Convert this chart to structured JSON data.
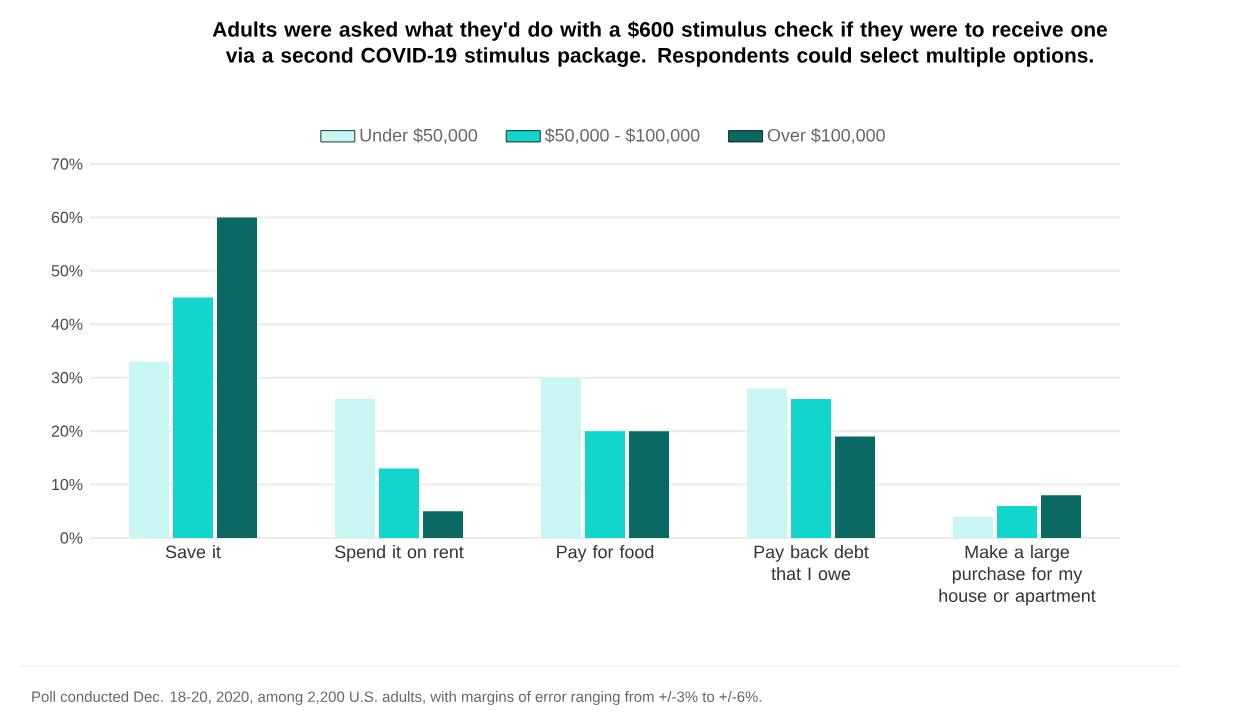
{
  "chart_data": {
    "type": "bar",
    "title": "Adults were asked what they'd do with a $600 stimulus check if they were to receive one via a second COVID-19 stimulus package. Respondents could select multiple options.",
    "categories": [
      "Save it",
      "Spend it on rent",
      "Pay for food",
      "Pay back debt that I owe",
      "Make a large purchase for my house or apartment"
    ],
    "series": [
      {
        "name": "Under $50,000",
        "color": "#c8f6f3",
        "values": [
          33,
          26,
          30,
          28,
          4
        ]
      },
      {
        "name": "$50,000 - $100,000",
        "color": "#12d6cb",
        "values": [
          45,
          13,
          20,
          26,
          6
        ]
      },
      {
        "name": "Over $100,000",
        "color": "#0a6a63",
        "values": [
          60,
          5,
          20,
          19,
          8
        ]
      }
    ],
    "ylim": [
      0,
      70
    ],
    "yticks": [
      {
        "value": 0,
        "label": "0%"
      },
      {
        "value": 10,
        "label": "10%"
      },
      {
        "value": 20,
        "label": "20%"
      },
      {
        "value": 30,
        "label": "30%"
      },
      {
        "value": 40,
        "label": "40%"
      },
      {
        "value": 50,
        "label": "50%"
      },
      {
        "value": 60,
        "label": "60%"
      },
      {
        "value": 70,
        "label": "70%"
      }
    ],
    "grid": "y",
    "legend": "top",
    "annotations": [
      "Poll conducted Dec. 18-20, 2020, among 2,200 U.S. adults, with margins of error ranging from +/-3% to +/-6%."
    ]
  }
}
